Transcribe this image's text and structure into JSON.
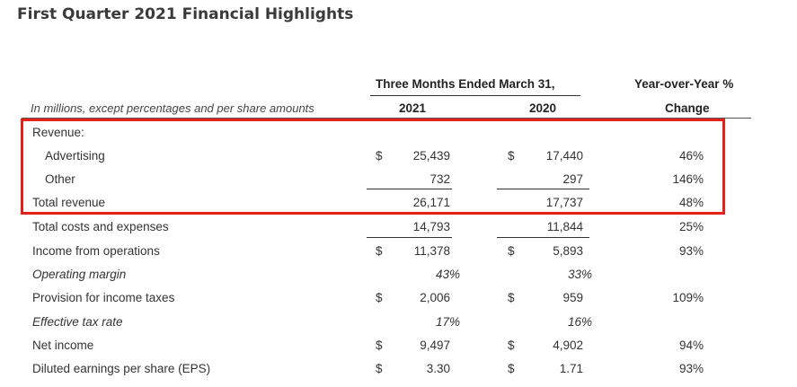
{
  "title": "First Quarter 2021 Financial Highlights",
  "header": {
    "period": "Three Months Ended March 31,",
    "subtitle": "In millions, except percentages and per share amounts",
    "col_2021": "2021",
    "col_2020": "2020",
    "yoy_line1": "Year-over-Year %",
    "yoy_line2": "Change"
  },
  "rows": [
    {
      "label": "Revenue:",
      "cur_a": "",
      "val_a": "",
      "cur_b": "",
      "val_b": "",
      "change": ""
    },
    {
      "label": "Advertising",
      "cur_a": "$",
      "val_a": "25,439",
      "cur_b": "$",
      "val_b": "17,440",
      "change": "46%"
    },
    {
      "label": "Other",
      "cur_a": "",
      "val_a": "732",
      "cur_b": "",
      "val_b": "297",
      "change": "146%"
    },
    {
      "label": "Total revenue",
      "cur_a": "",
      "val_a": "26,171",
      "cur_b": "",
      "val_b": "17,737",
      "change": "48%"
    },
    {
      "label": "Total costs and expenses",
      "cur_a": "",
      "val_a": "14,793",
      "cur_b": "",
      "val_b": "11,844",
      "change": "25%"
    },
    {
      "label": "Income from operations",
      "cur_a": "$",
      "val_a": "11,378",
      "cur_b": "$",
      "val_b": "5,893",
      "change": "93%"
    },
    {
      "label": "Operating margin",
      "cur_a": "",
      "val_a": "43%",
      "cur_b": "",
      "val_b": "33%",
      "change": ""
    },
    {
      "label": "Provision for income taxes",
      "cur_a": "$",
      "val_a": "2,006",
      "cur_b": "$",
      "val_b": "959",
      "change": "109%"
    },
    {
      "label": "Effective tax rate",
      "cur_a": "",
      "val_a": "17%",
      "cur_b": "",
      "val_b": "16%",
      "change": ""
    },
    {
      "label": "Net income",
      "cur_a": "$",
      "val_a": "9,497",
      "cur_b": "$",
      "val_b": "4,902",
      "change": "94%"
    },
    {
      "label": "Diluted earnings per share (EPS)",
      "cur_a": "$",
      "val_a": "3.30",
      "cur_b": "$",
      "val_b": "1.71",
      "change": "93%"
    }
  ],
  "highlight_color": "#e8201a"
}
